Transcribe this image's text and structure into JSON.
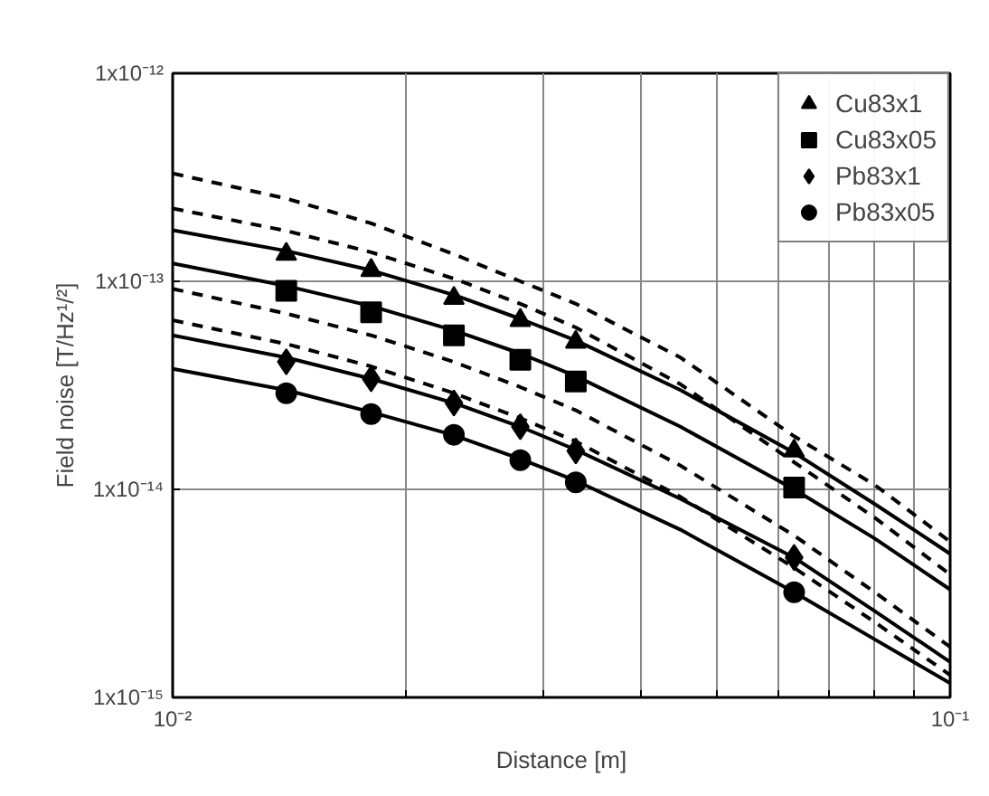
{
  "chart_data": {
    "type": "scatter",
    "xlabel": "Distance [m]",
    "ylabel": "Field noise [T/Hz¹/²]",
    "log": "xy",
    "grid": true,
    "legend": "top right",
    "xlim": [
      0.01,
      0.1
    ],
    "ylim": [
      1e-15,
      1e-12
    ],
    "xticks": [
      {
        "value": 0.01,
        "label": "10⁻²"
      },
      {
        "value": 0.02,
        "label": null
      },
      {
        "value": 0.03,
        "label": null
      },
      {
        "value": 0.04,
        "label": null
      },
      {
        "value": 0.05,
        "label": null
      },
      {
        "value": 0.06,
        "label": null
      },
      {
        "value": 0.07,
        "label": null
      },
      {
        "value": 0.08,
        "label": null
      },
      {
        "value": 0.09,
        "label": null
      },
      {
        "value": 0.1,
        "label": "10⁻¹"
      }
    ],
    "yticks": [
      {
        "value": 1e-15,
        "label": "1x10⁻¹⁵"
      },
      {
        "value": 1e-14,
        "label": "1x10⁻¹⁴"
      },
      {
        "value": 1e-13,
        "label": "1x10⁻¹³"
      },
      {
        "value": 1e-12,
        "label": "1x10⁻¹²"
      }
    ],
    "x": [
      0.014,
      0.018,
      0.023,
      0.028,
      0.033,
      0.063
    ],
    "series": [
      {
        "name": "Cu83x1",
        "color": "#000000",
        "marker": "triangle",
        "values": [
          1.35e-13,
          1.13e-13,
          8.3e-14,
          6.5e-14,
          5.1e-14,
          1.53e-14
        ]
      },
      {
        "name": "Cu83x05",
        "color": "#000000",
        "marker": "square",
        "values": [
          9e-14,
          7.1e-14,
          5.5e-14,
          4.2e-14,
          3.3e-14,
          1.02e-14
        ]
      },
      {
        "name": "Pb83x1",
        "color": "#000000",
        "marker": "diamond",
        "values": [
          4.1e-14,
          3.4e-14,
          2.6e-14,
          2e-14,
          1.53e-14,
          4.7e-15
        ]
      },
      {
        "name": "Pb83x05",
        "color": "#000000",
        "marker": "circle",
        "values": [
          2.9e-14,
          2.3e-14,
          1.83e-14,
          1.38e-14,
          1.08e-14,
          3.2e-15
        ]
      },
      {
        "type": "line",
        "color": "#000000",
        "line_style": "solid",
        "x": [
          0.01,
          0.014,
          0.018,
          0.023,
          0.028,
          0.033,
          0.045,
          0.063,
          0.08,
          0.1
        ],
        "values": [
          1.76e-13,
          1.4e-13,
          1.13e-13,
          8.6e-14,
          6.6e-14,
          5.2e-14,
          3e-14,
          1.5e-14,
          8.5e-15,
          4.9e-15
        ]
      },
      {
        "type": "line",
        "color": "#000000",
        "line_style": "solid",
        "x": [
          0.01,
          0.014,
          0.018,
          0.023,
          0.028,
          0.033,
          0.045,
          0.063,
          0.08,
          0.1
        ],
        "values": [
          1.22e-13,
          9.5e-14,
          7.6e-14,
          5.8e-14,
          4.5e-14,
          3.5e-14,
          2e-14,
          1e-14,
          5.8e-15,
          3.3e-15
        ]
      },
      {
        "type": "line",
        "color": "#000000",
        "line_style": "solid",
        "x": [
          0.01,
          0.014,
          0.018,
          0.023,
          0.028,
          0.033,
          0.045,
          0.063,
          0.08,
          0.1
        ],
        "values": [
          5.5e-14,
          4.3e-14,
          3.4e-14,
          2.6e-14,
          2e-14,
          1.55e-14,
          9e-15,
          4.7e-15,
          2.6e-15,
          1.48e-15
        ]
      },
      {
        "type": "line",
        "color": "#000000",
        "line_style": "solid",
        "x": [
          0.01,
          0.014,
          0.018,
          0.023,
          0.028,
          0.033,
          0.045,
          0.063,
          0.08,
          0.1
        ],
        "values": [
          3.8e-14,
          3e-14,
          2.35e-14,
          1.82e-14,
          1.4e-14,
          1.1e-14,
          6.4e-15,
          3.2e-15,
          1.9e-15,
          1.17e-15
        ]
      },
      {
        "type": "line",
        "color": "#000000",
        "line_style": "dashed",
        "x": [
          0.01,
          0.014,
          0.018,
          0.023,
          0.028,
          0.033,
          0.045,
          0.063,
          0.08,
          0.1
        ],
        "values": [
          3.3e-13,
          2.5e-13,
          1.9e-13,
          1.35e-13,
          1e-13,
          7.8e-14,
          4.3e-14,
          1.8e-14,
          1.05e-14,
          5.6e-15
        ]
      },
      {
        "type": "line",
        "color": "#000000",
        "line_style": "dashed",
        "x": [
          0.01,
          0.014,
          0.018,
          0.023,
          0.028,
          0.033,
          0.045,
          0.063,
          0.08,
          0.1
        ],
        "values": [
          2.24e-13,
          1.75e-13,
          1.38e-13,
          1.03e-13,
          7.8e-14,
          6e-14,
          3.2e-14,
          1.35e-14,
          7.3e-15,
          3.9e-15
        ]
      },
      {
        "type": "line",
        "color": "#000000",
        "line_style": "dashed",
        "x": [
          0.01,
          0.014,
          0.018,
          0.023,
          0.028,
          0.033,
          0.045,
          0.063,
          0.08,
          0.1
        ],
        "values": [
          9.2e-14,
          7e-14,
          5.5e-14,
          4.1e-14,
          3.1e-14,
          2.4e-14,
          1.3e-14,
          6e-15,
          3.2e-15,
          1.75e-15
        ]
      },
      {
        "type": "line",
        "color": "#000000",
        "line_style": "dashed",
        "x": [
          0.01,
          0.014,
          0.018,
          0.023,
          0.028,
          0.033,
          0.045,
          0.063,
          0.08,
          0.1
        ],
        "values": [
          6.5e-14,
          5e-14,
          3.9e-14,
          2.9e-14,
          2.2e-14,
          1.7e-14,
          9.2e-15,
          4.2e-15,
          2.3e-15,
          1.28e-15
        ]
      }
    ]
  }
}
